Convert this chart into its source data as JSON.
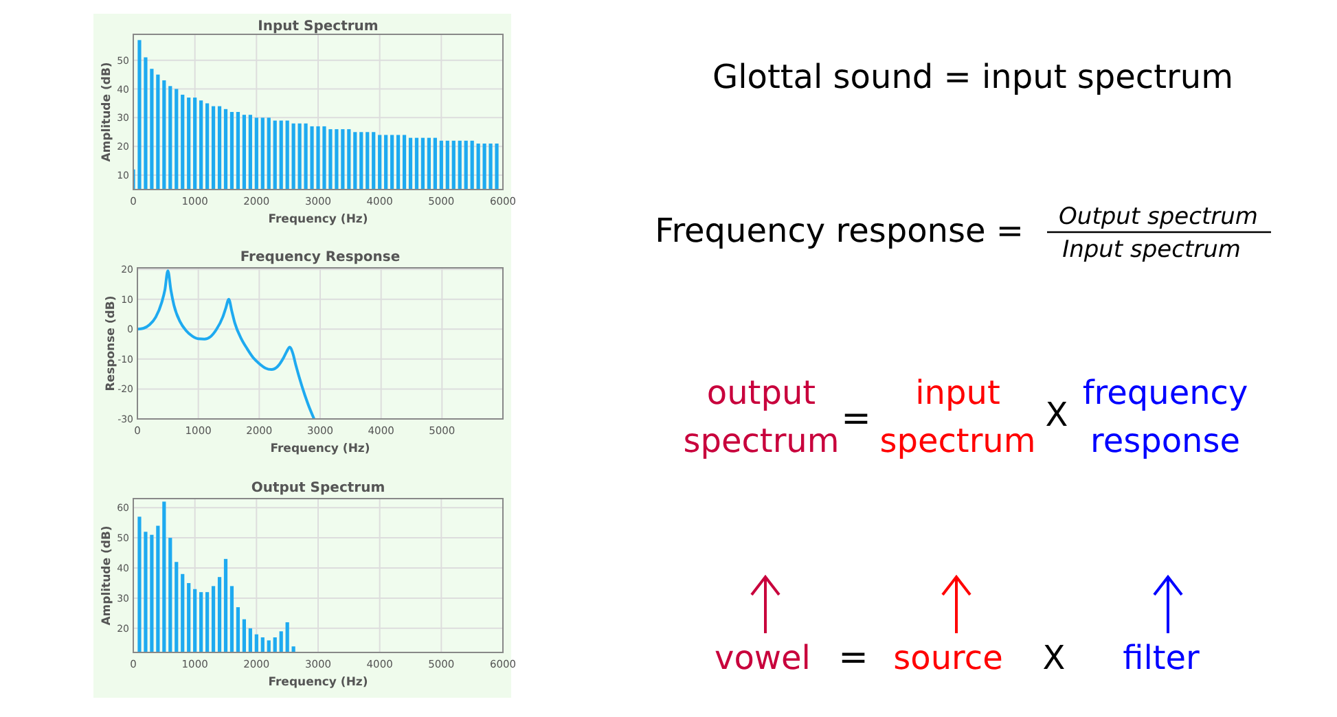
{
  "chart_data": [
    {
      "type": "bar",
      "title": "Input Spectrum",
      "xlabel": "Frequency (Hz)",
      "ylabel": "Amplitude (dB)",
      "color": "#1eaaf0",
      "x": [
        0,
        100,
        200,
        300,
        400,
        500,
        600,
        700,
        800,
        900,
        1000,
        1100,
        1200,
        1300,
        1400,
        1500,
        1600,
        1700,
        1800,
        1900,
        2000,
        2100,
        2200,
        2300,
        2400,
        2500,
        2600,
        2700,
        2800,
        2900,
        3000,
        3100,
        3200,
        3300,
        3400,
        3500,
        3600,
        3700,
        3800,
        3900,
        4000,
        4100,
        4200,
        4300,
        4400,
        4500,
        4600,
        4700,
        4800,
        4900,
        5000,
        5100,
        5200,
        5300,
        5400,
        5500,
        5600,
        5700,
        5800,
        5900
      ],
      "values": [
        12,
        57,
        51,
        47,
        45,
        43,
        41,
        40,
        38,
        37,
        37,
        36,
        35,
        34,
        34,
        33,
        32,
        32,
        31,
        31,
        30,
        30,
        30,
        29,
        29,
        29,
        28,
        28,
        28,
        27,
        27,
        27,
        26,
        26,
        26,
        26,
        25,
        25,
        25,
        25,
        24,
        24,
        24,
        24,
        24,
        23,
        23,
        23,
        23,
        23,
        22,
        22,
        22,
        22,
        22,
        22,
        21,
        21,
        21,
        21
      ],
      "xlim": [
        0,
        6000
      ],
      "xticks": [
        0,
        1000,
        2000,
        3000,
        4000,
        5000,
        6000
      ],
      "ylim": [
        5,
        59
      ],
      "yticks": [
        10,
        20,
        30,
        40,
        50
      ],
      "grid": true
    },
    {
      "type": "line",
      "title": "Frequency Response",
      "xlabel": "Frequency (Hz)",
      "ylabel": "Response (dB)",
      "color": "#1eaaf0",
      "x": [
        0,
        100,
        200,
        300,
        400,
        450,
        500,
        550,
        600,
        700,
        800,
        900,
        1000,
        1100,
        1200,
        1300,
        1400,
        1450,
        1500,
        1550,
        1600,
        1700,
        1800,
        1900,
        2000,
        2100,
        2200,
        2300,
        2400,
        2450,
        2500,
        2550,
        2600,
        2700,
        2800,
        2900
      ],
      "values": [
        0,
        0.3,
        1.5,
        4,
        9,
        13,
        19.5,
        13,
        8,
        2.5,
        -0.5,
        -2.3,
        -3.2,
        -3.3,
        -2.5,
        0,
        4,
        7,
        10,
        6,
        2,
        -3,
        -6.5,
        -9.5,
        -11.5,
        -13,
        -13.5,
        -12.5,
        -9.5,
        -7.5,
        -6,
        -8,
        -12,
        -19,
        -25,
        -30
      ],
      "xlim": [
        0,
        6000
      ],
      "xticks": [
        0,
        1000,
        2000,
        3000,
        4000,
        5000
      ],
      "ylim": [
        -30,
        20.5
      ],
      "yticks": [
        -30,
        -20,
        -10,
        0,
        10,
        20
      ],
      "grid": true
    },
    {
      "type": "bar",
      "title": "Output Spectrum",
      "xlabel": "Frequency (Hz)",
      "ylabel": "Amplitude (dB)",
      "color": "#1eaaf0",
      "x": [
        100,
        200,
        300,
        400,
        500,
        600,
        700,
        800,
        900,
        1000,
        1100,
        1200,
        1300,
        1400,
        1500,
        1600,
        1700,
        1800,
        1900,
        2000,
        2100,
        2200,
        2300,
        2400,
        2500,
        2600
      ],
      "values": [
        57,
        52,
        51,
        54,
        62,
        50,
        42,
        38,
        35,
        33,
        32,
        32,
        34,
        37,
        43,
        34,
        27,
        23,
        20,
        18,
        17,
        16,
        17,
        19,
        22,
        14
      ],
      "xlim": [
        0,
        6000
      ],
      "xticks": [
        0,
        1000,
        2000,
        3000,
        4000,
        5000,
        6000
      ],
      "ylim": [
        12,
        63
      ],
      "yticks": [
        20,
        30,
        40,
        50,
        60
      ],
      "grid": true
    },
    {
      "type": "other",
      "annotations": [
        "Glottal sound = input spectrum",
        "Frequency response =",
        "Output spectrum",
        "Input spectrum",
        "output spectrum",
        "=",
        "input spectrum",
        "X",
        "frequency response",
        "vowel",
        "=",
        "source",
        "X",
        "filter"
      ]
    }
  ]
}
